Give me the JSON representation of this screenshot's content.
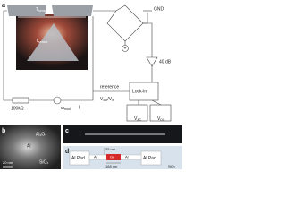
{
  "panels": {
    "a": {
      "label": "a",
      "sensor_top": {
        "main": "T",
        "sub": "sensor"
      },
      "sensor_tip": {
        "main": "T",
        "sub": "sensor"
      },
      "ground": "GND",
      "bridge_sign": "+",
      "amplifier": "40 dB",
      "resistor": "100kΩ",
      "source": {
        "main": "ω",
        "sub": "mod"
      },
      "current": "I",
      "reference": "reference",
      "ratio": {
        "main": "V",
        "sub": "out",
        "mid": "/V",
        "sub2": "in"
      },
      "lockin": "Lock-in",
      "meter_ac": {
        "main": "V",
        "sub": "AC"
      },
      "meter_dc": {
        "main": "V",
        "sub": "DC"
      }
    },
    "b": {
      "label": "b",
      "layer_top": "Al₂O₃",
      "layer_mid": "Al",
      "substrate": "SiO₂",
      "scale": "20 nm"
    },
    "c": {
      "label": "c"
    },
    "d": {
      "label": "d",
      "pad_left": "Al Pad",
      "wire_left": "Al",
      "junction": "Ge",
      "wire_right": "Al",
      "pad_right": "Al Pad",
      "width": "35 nm",
      "length": "168 nm",
      "substrate": "SiO₂"
    }
  }
}
